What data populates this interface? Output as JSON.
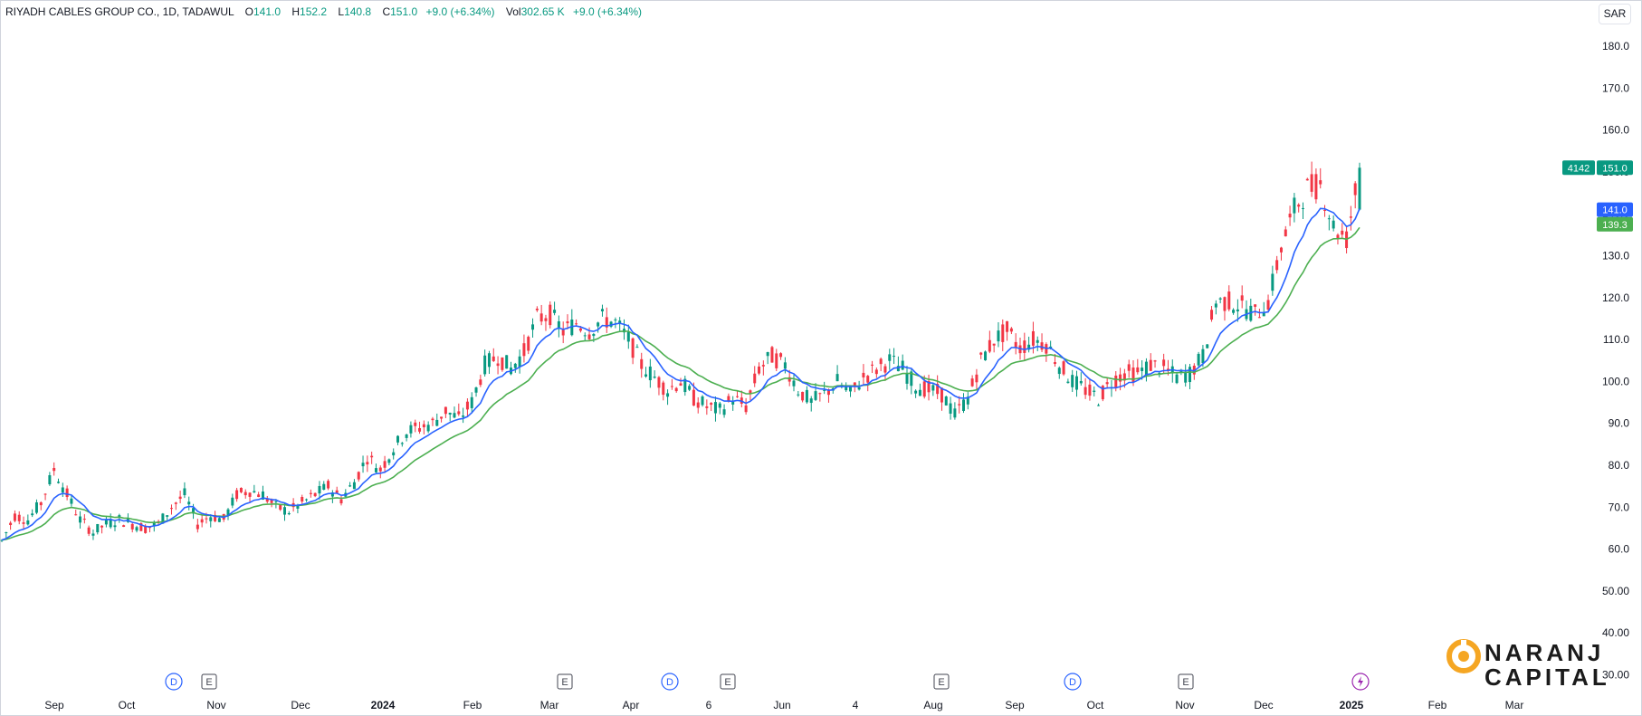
{
  "legend": {
    "symbol": "RIYADH CABLES GROUP CO., 1D, TADAWUL",
    "o_label": "O",
    "o_val": "141.0",
    "h_label": "H",
    "h_val": "152.2",
    "l_label": "L",
    "l_val": "140.8",
    "c_label": "C",
    "c_val": "151.0",
    "chg": "+9.0 (+6.34%)",
    "vol_label": "Vol",
    "vol_val": "302.65 K",
    "vol_chg": "+9.0 (+6.34%)"
  },
  "currency": "SAR",
  "price_tags": {
    "vol_tag": "4142",
    "last": "151.0",
    "ema_fast": "141.0",
    "ema_slow": "139.3"
  },
  "brand": {
    "line1": "NARANJ",
    "line2": "CAPITAL"
  },
  "colors": {
    "up": "#089981",
    "down": "#f23645",
    "ema_fast": "#2962ff",
    "ema_slow": "#4caf50",
    "brand_orange": "#f5a623"
  },
  "chart_data": {
    "type": "candlestick",
    "ylim": [
      30,
      185
    ],
    "y_ticks": [
      "180.0",
      "170.0",
      "160.0",
      "150.0",
      "140.0",
      "130.0",
      "120.0",
      "110.0",
      "100.0",
      "90.0",
      "80.0",
      "70.0",
      "60.0",
      "50.00",
      "40.00",
      "30.00"
    ],
    "x_ticks": [
      {
        "label": "Sep",
        "bold": false
      },
      {
        "label": "Oct",
        "bold": false
      },
      {
        "label": "Nov",
        "bold": false
      },
      {
        "label": "Dec",
        "bold": false
      },
      {
        "label": "2024",
        "bold": true
      },
      {
        "label": "Feb",
        "bold": false
      },
      {
        "label": "Mar",
        "bold": false
      },
      {
        "label": "Apr",
        "bold": false
      },
      {
        "label": "6",
        "bold": false
      },
      {
        "label": "Jun",
        "bold": false
      },
      {
        "label": "4",
        "bold": false
      },
      {
        "label": "Aug",
        "bold": false
      },
      {
        "label": "Sep",
        "bold": false
      },
      {
        "label": "Oct",
        "bold": false
      },
      {
        "label": "Nov",
        "bold": false
      },
      {
        "label": "Dec",
        "bold": false
      },
      {
        "label": "2025",
        "bold": true
      },
      {
        "label": "Feb",
        "bold": false
      },
      {
        "label": "Mar",
        "bold": false
      }
    ],
    "events": [
      {
        "type": "D",
        "month_index": 2
      },
      {
        "type": "E",
        "month_index": 2
      },
      {
        "type": "E",
        "month_index": 6
      },
      {
        "type": "D",
        "month_index": 7
      },
      {
        "type": "E",
        "month_index": 8
      },
      {
        "type": "E",
        "month_index": 11
      },
      {
        "type": "D",
        "month_index": 13
      },
      {
        "type": "E",
        "month_index": 14
      },
      {
        "type": "flash",
        "month_index": 16
      }
    ],
    "anchors": [
      62,
      68,
      67,
      71,
      79,
      73,
      67,
      64,
      66,
      67,
      66,
      65,
      66,
      70,
      73,
      66,
      68,
      67,
      73,
      74,
      73,
      70,
      69,
      71,
      73,
      75,
      72,
      76,
      82,
      79,
      84,
      88,
      89,
      90,
      93,
      91,
      95,
      104,
      106,
      103,
      107,
      115,
      116,
      112,
      114,
      112,
      115,
      114,
      110,
      104,
      101,
      98,
      100,
      96,
      94,
      93,
      96,
      94,
      103,
      106,
      104,
      98,
      95,
      97,
      100,
      97,
      101,
      103,
      105,
      103,
      99,
      98,
      97,
      92,
      96,
      105,
      110,
      112,
      108,
      110,
      109,
      104,
      100,
      98,
      96,
      100,
      102,
      102,
      104,
      103,
      101,
      102,
      106,
      119,
      119,
      118,
      116,
      119,
      132,
      141,
      146,
      147,
      137,
      134,
      151
    ]
  }
}
